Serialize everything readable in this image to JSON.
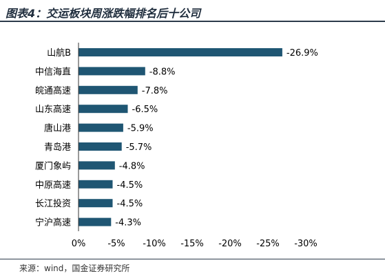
{
  "header": {
    "title": "图表4：交运板块周涨跌幅排名后十公司"
  },
  "footer": {
    "source": "来源：wind，国金证券研究所"
  },
  "chart_data": {
    "type": "bar",
    "orientation": "horizontal",
    "categories": [
      "山航B",
      "中信海直",
      "皖通高速",
      "山东高速",
      "唐山港",
      "青岛港",
      "厦门象屿",
      "中原高速",
      "长江投资",
      "宁沪高速"
    ],
    "values": [
      -26.9,
      -8.8,
      -7.8,
      -6.5,
      -5.9,
      -5.7,
      -4.8,
      -4.5,
      -4.5,
      -4.3
    ],
    "data_labels": [
      "-26.9%",
      "-8.8%",
      "-7.8%",
      "-6.5%",
      "-5.9%",
      "-5.7%",
      "-4.8%",
      "-4.5%",
      "-4.5%",
      "-4.3%"
    ],
    "xlim": [
      0,
      -30
    ],
    "x_ticks": [
      0,
      -5,
      -10,
      -15,
      -20,
      -25,
      -30
    ],
    "x_tick_labels": [
      "0%",
      "-5%",
      "-10%",
      "-15%",
      "-20%",
      "-25%",
      "-30%"
    ],
    "bar_color": "#1f5673",
    "grid": false,
    "legend": "none"
  }
}
